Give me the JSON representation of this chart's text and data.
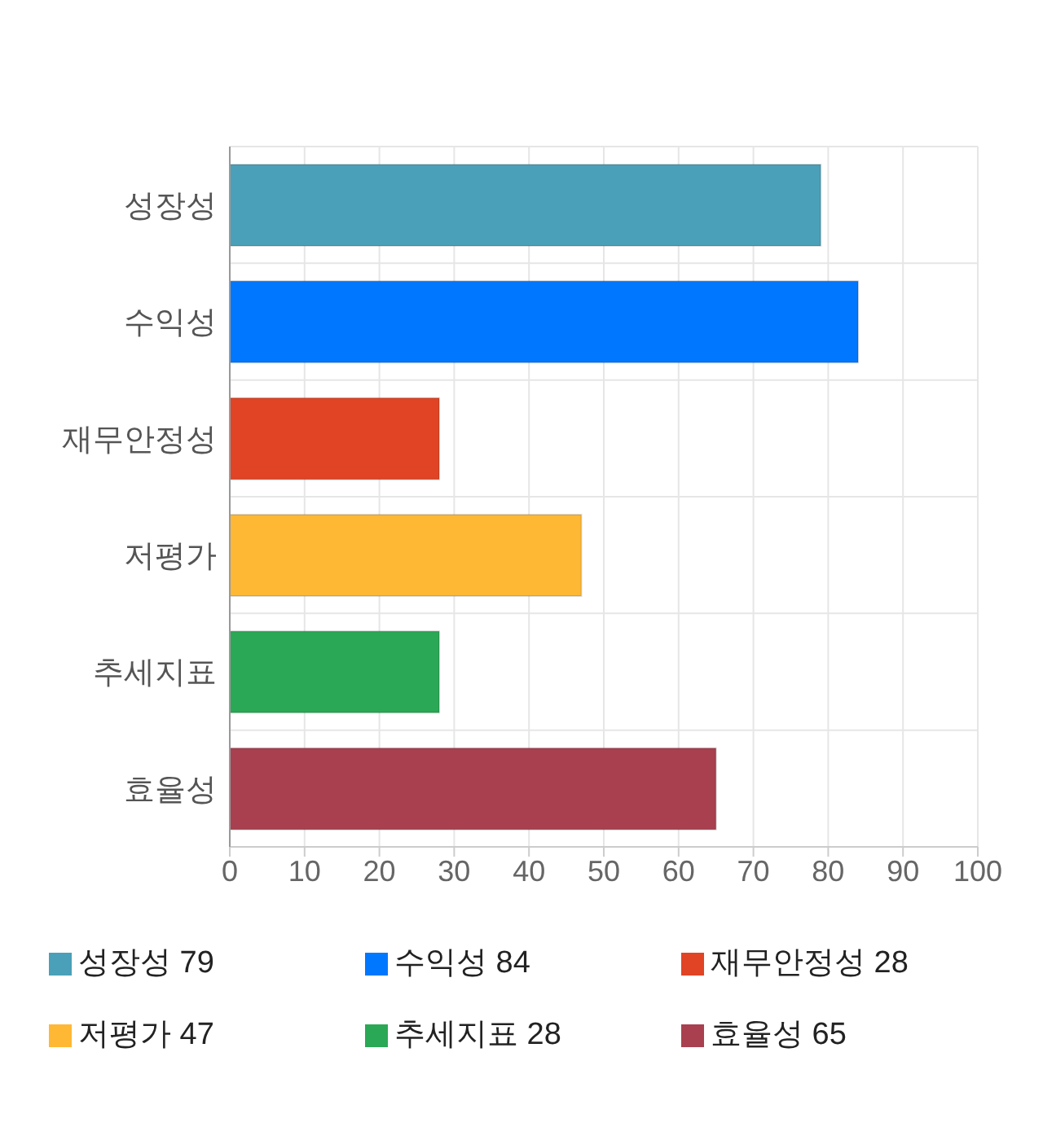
{
  "chart_data": {
    "type": "bar",
    "orientation": "horizontal",
    "stacked": true,
    "categories": [
      "성장성",
      "수익성",
      "재무안정성",
      "저평가",
      "추세지표",
      "효율성"
    ],
    "series": [
      {
        "name": "성장성 79",
        "color": "#4aa0b8",
        "values": [
          79,
          null,
          null,
          null,
          null,
          null
        ]
      },
      {
        "name": "수익성 84",
        "color": "#0077ff",
        "values": [
          null,
          84,
          null,
          null,
          null,
          null
        ]
      },
      {
        "name": "재무안정성 28",
        "color": "#e04425",
        "values": [
          null,
          null,
          28,
          null,
          null,
          null
        ]
      },
      {
        "name": "저평가 47",
        "color": "#ffb833",
        "values": [
          null,
          null,
          null,
          47,
          null,
          null
        ]
      },
      {
        "name": "추세지표 28",
        "color": "#2aa855",
        "values": [
          null,
          null,
          null,
          null,
          28,
          null
        ]
      },
      {
        "name": "효율성 65",
        "color": "#a8404f",
        "values": [
          null,
          null,
          null,
          null,
          null,
          65
        ]
      }
    ],
    "xlim": [
      0,
      100
    ],
    "xticks": [
      0,
      10,
      20,
      30,
      40,
      50,
      60,
      70,
      80,
      90,
      100
    ],
    "grid": true,
    "legend": "bottom"
  }
}
